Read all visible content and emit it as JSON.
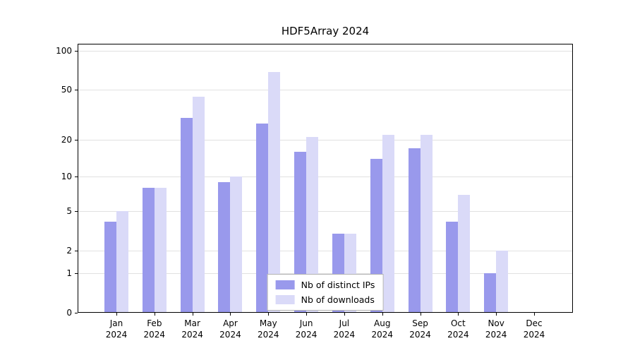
{
  "chart_data": {
    "type": "bar",
    "title": "HDF5Array 2024",
    "scale": "log1p",
    "categories": [
      "Jan",
      "Feb",
      "Mar",
      "Apr",
      "May",
      "Jun",
      "Jul",
      "Aug",
      "Sep",
      "Oct",
      "Nov",
      "Dec"
    ],
    "year": "2024",
    "series": [
      {
        "name": "Nb of distinct IPs",
        "color": "#9999ec",
        "values": [
          4,
          8,
          30,
          9,
          27,
          16,
          3,
          14,
          17,
          4,
          1,
          0
        ]
      },
      {
        "name": "Nb of downloads",
        "color": "#dadaf8",
        "values": [
          5,
          8,
          44,
          10,
          68,
          21,
          3,
          22,
          22,
          7,
          2,
          0
        ]
      }
    ],
    "yticks": [
      0,
      1,
      2,
      5,
      10,
      20,
      50,
      100
    ],
    "ylim": [
      0,
      113
    ],
    "xlabel": "",
    "ylabel": "",
    "grid": "horizontal",
    "legend_position": "bottom-center",
    "colors": {
      "grid": "#e1e1e1",
      "axis": "#000000",
      "background": "#ffffff"
    }
  }
}
